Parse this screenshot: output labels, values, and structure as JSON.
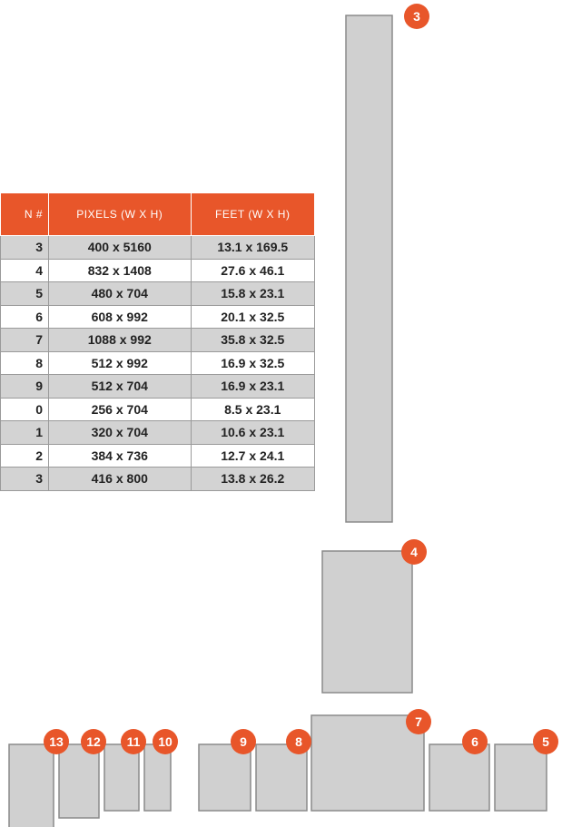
{
  "table": {
    "header": [
      "N #",
      "PIXELS (W X H)",
      "FEET (W X H)"
    ],
    "rows": [
      [
        "3",
        "400 x 5160",
        "13.1 x 169.5"
      ],
      [
        "4",
        "832 x 1408",
        "27.6 x 46.1"
      ],
      [
        "5",
        "480 x 704",
        "15.8 x 23.1"
      ],
      [
        "6",
        "608 x 992",
        "20.1 x 32.5"
      ],
      [
        "7",
        "1088 x 992",
        "35.8 x 32.5"
      ],
      [
        "8",
        "512 x 992",
        "16.9 x 32.5"
      ],
      [
        "9",
        "512 x 704",
        "16.9 x 23.1"
      ],
      [
        "0",
        "256 x 704",
        "8.5 x 23.1"
      ],
      [
        "1",
        "320 x 704",
        "10.6 x 23.1"
      ],
      [
        "2",
        "384 x 736",
        "12.7 x 24.1"
      ],
      [
        "3",
        "416 x 800",
        "13.8 x 26.2"
      ]
    ]
  },
  "screens": [
    "3",
    "4",
    "7",
    "6",
    "5",
    "8",
    "9",
    "10",
    "11",
    "12",
    "13"
  ]
}
